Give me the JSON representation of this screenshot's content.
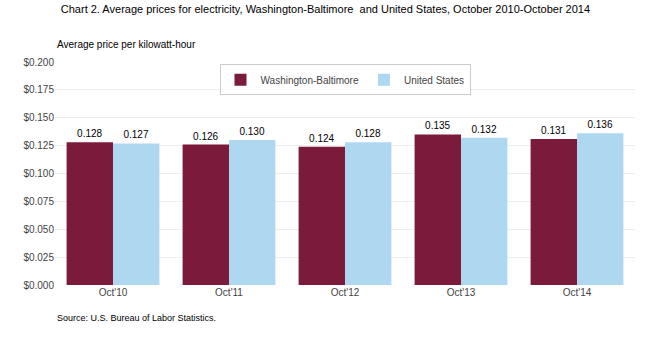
{
  "chart_data": {
    "type": "bar",
    "title": "Chart 2. Average prices for electricity, Washington-Baltimore  and United States, October 2010-October 2014",
    "ylabel": "Average price per kilowatt-hour",
    "source": "Source: U.S. Bureau of Labor Statistics.",
    "categories": [
      "Oct'10",
      "Oct'11",
      "Oct'12",
      "Oct'13",
      "Oct'14"
    ],
    "series": [
      {
        "name": "Washington-Baltimore",
        "color": "#7B1A3B",
        "values": [
          0.128,
          0.126,
          0.124,
          0.135,
          0.131
        ],
        "value_labels": [
          "0.128",
          "0.126",
          "0.124",
          "0.135",
          "0.131"
        ]
      },
      {
        "name": "United States",
        "color": "#ADD8F0",
        "values": [
          0.127,
          0.13,
          0.128,
          0.132,
          0.136
        ],
        "value_labels": [
          "0.127",
          "0.130",
          "0.128",
          "0.132",
          "0.136"
        ]
      }
    ],
    "ylim": [
      0.0,
      0.2
    ],
    "yticks": [
      {
        "value": 0,
        "label": "$0.000"
      },
      {
        "value": 0.025,
        "label": "$0.025"
      },
      {
        "value": 0.05,
        "label": "$0.050"
      },
      {
        "value": 0.075,
        "label": "$0.075"
      },
      {
        "value": 0.1,
        "label": "$0.100"
      },
      {
        "value": 0.125,
        "label": "$0.125"
      },
      {
        "value": 0.15,
        "label": "$0.150"
      },
      {
        "value": 0.175,
        "label": "$0.175"
      },
      {
        "value": 0.2,
        "label": "$0.200"
      }
    ],
    "grid": true,
    "legend": "top",
    "data_labels": true
  }
}
